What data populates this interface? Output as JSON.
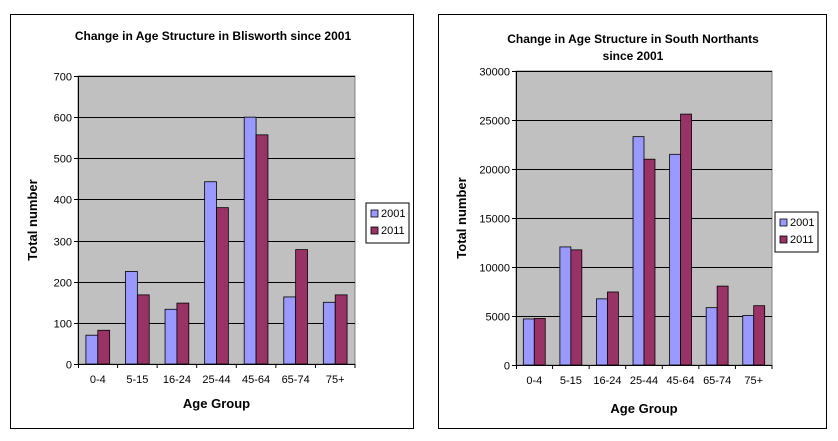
{
  "chart_data": [
    {
      "type": "bar",
      "title": [
        "Change in Age Structure in Blisworth since 2001"
      ],
      "xlabel": "Age Group",
      "ylabel": "Total number",
      "categories": [
        "0-4",
        "5-15",
        "16-24",
        "25-44",
        "45-64",
        "65-74",
        "75+"
      ],
      "series": [
        {
          "name": "2001",
          "values": [
            70,
            225,
            133,
            443,
            600,
            163,
            150
          ]
        },
        {
          "name": "2011",
          "values": [
            82,
            168,
            148,
            380,
            557,
            278,
            168
          ]
        }
      ],
      "ylim": [
        0,
        700
      ],
      "yticks": [
        0,
        100,
        200,
        300,
        400,
        500,
        600,
        700
      ],
      "ytick_labels": [
        "0",
        "100",
        "200",
        "300",
        "400",
        "500",
        "600",
        "700"
      ],
      "grid": true,
      "legend_position": "right",
      "colors": {
        "plot_bg": "#c0c0c0",
        "series": [
          "#9999ff",
          "#993366"
        ]
      }
    },
    {
      "type": "bar",
      "title": [
        "Change in Age Structure in South Northants",
        "since 2001"
      ],
      "xlabel": "Age Group",
      "ylabel": "Total number",
      "categories": [
        "0-4",
        "5-15",
        "16-24",
        "25-44",
        "45-64",
        "65-74",
        "75+"
      ],
      "series": [
        {
          "name": "2001",
          "values": [
            4700,
            12050,
            6750,
            23300,
            21500,
            5850,
            5050
          ]
        },
        {
          "name": "2011",
          "values": [
            4750,
            11750,
            7450,
            21000,
            25600,
            8050,
            6050
          ]
        }
      ],
      "ylim": [
        0,
        30000
      ],
      "yticks": [
        0,
        5000,
        10000,
        15000,
        20000,
        25000,
        30000
      ],
      "ytick_labels": [
        "0",
        "5000",
        "10000",
        "15000",
        "20000",
        "25000",
        "30000"
      ],
      "grid": true,
      "legend_position": "right",
      "colors": {
        "plot_bg": "#c0c0c0",
        "series": [
          "#9999ff",
          "#993366"
        ]
      }
    }
  ]
}
